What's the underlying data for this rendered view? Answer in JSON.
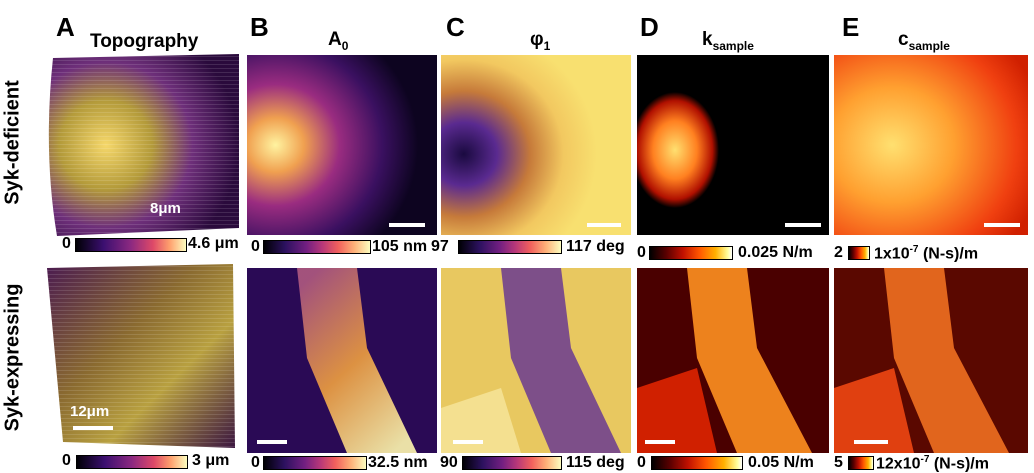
{
  "panels": {
    "A": {
      "letter": "A",
      "title": "Topography"
    },
    "B": {
      "letter": "B",
      "title_main": "A",
      "title_sub": "0"
    },
    "C": {
      "letter": "C",
      "title_main": "φ",
      "title_sub": "1"
    },
    "D": {
      "letter": "D",
      "title_main": "k",
      "title_sub": "sample"
    },
    "E": {
      "letter": "E",
      "title_main": "c",
      "title_sub": "sample"
    }
  },
  "rows": {
    "top": "Syk-deficient",
    "bottom": "Syk-expressing"
  },
  "scalebars": {
    "top_A": "8μm",
    "bottom_A": "12μm"
  },
  "colorbars_top": {
    "A": {
      "min": "0",
      "max": "4.6 μm"
    },
    "B": {
      "min": "0",
      "max": "105 nm"
    },
    "C": {
      "min": "97",
      "max": "117 deg"
    },
    "D": {
      "min": "0",
      "max": "0.025 N/m"
    },
    "E": {
      "min": "2",
      "max_pre": "1x10",
      "max_exp": "-7",
      "max_post": " (N-s)/m"
    }
  },
  "colorbars_bottom": {
    "A": {
      "min": "0",
      "max": "3 μm"
    },
    "B": {
      "min": "0",
      "max": "32.5 nm"
    },
    "C": {
      "min": "90",
      "max": "115 deg"
    },
    "D": {
      "min": "0",
      "max": "0.05 N/m"
    },
    "E": {
      "min": "5",
      "max_pre": "12x10",
      "max_exp": "-7",
      "max_post": " (N-s)/m"
    }
  },
  "colormaps": {
    "topography": "inferno",
    "amplitude": "plasma",
    "phase": "plasma",
    "stiffness": "hot",
    "damping": "hot"
  }
}
